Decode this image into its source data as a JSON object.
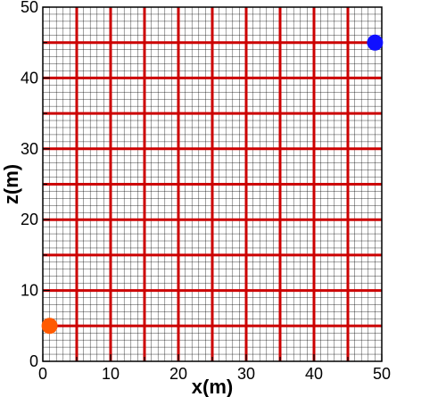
{
  "chart_data": {
    "type": "scatter",
    "xlabel": "x(m)",
    "ylabel": "z(m)",
    "xlim": [
      0,
      50
    ],
    "ylim": [
      0,
      50
    ],
    "x_ticks": [
      "0",
      "10",
      "20",
      "30",
      "40",
      "50"
    ],
    "y_ticks": [
      "0",
      "10",
      "20",
      "30",
      "40",
      "50"
    ],
    "fine_grid_spacing": 1,
    "coarse_grid_spacing": 5,
    "fine_grid_color": "#000000",
    "coarse_grid_color": "#cc0000",
    "points": [
      {
        "x": 1,
        "z": 5,
        "color": "#ff5a00"
      },
      {
        "x": 49,
        "z": 45,
        "color": "#1010ff"
      }
    ],
    "grid": true,
    "legend": "none"
  }
}
